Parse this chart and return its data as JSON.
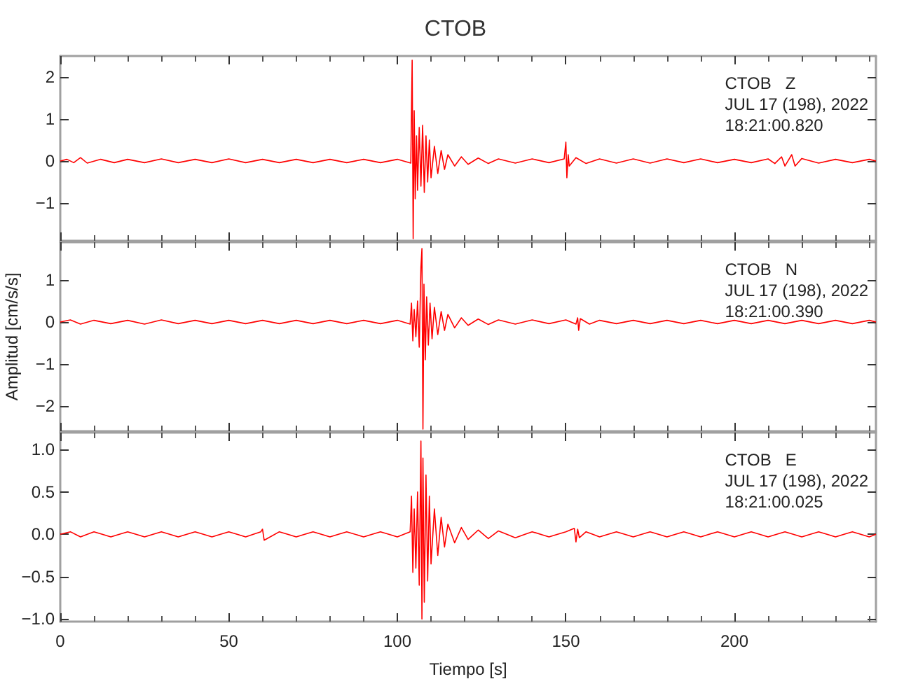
{
  "chart_data": [
    {
      "type": "line",
      "title": "CTOB",
      "color": "#ff0000",
      "xlim": [
        0,
        242
      ],
      "xticks": [
        0,
        50,
        100,
        150,
        200
      ],
      "ylim": [
        -1.9,
        2.5
      ],
      "yticks": [
        {
          "value": -1,
          "label": "−1"
        },
        0,
        1,
        2
      ],
      "grid": false,
      "tick_labels": "y",
      "annotations": [
        "CTOB   Z",
        "JUL 17 (198), 2022",
        "18:21:00.820"
      ],
      "x": [
        0,
        2,
        4,
        6,
        8,
        12,
        16,
        20,
        25,
        30,
        35,
        40,
        45,
        50,
        55,
        60,
        65,
        70,
        75,
        80,
        85,
        90,
        95,
        100,
        104,
        104.4,
        104.7,
        105,
        105.3,
        105.7,
        106,
        106.5,
        107,
        107.5,
        108,
        108.5,
        109,
        109.5,
        110,
        111,
        112,
        113,
        114,
        115,
        117,
        119,
        121,
        124,
        127,
        130,
        135,
        140,
        145,
        149.5,
        150,
        150.3,
        150.7,
        151,
        153,
        156,
        160,
        165,
        170,
        175,
        180,
        185,
        190,
        195,
        200,
        205,
        210,
        212,
        214,
        215,
        217,
        218,
        220,
        225,
        230,
        235,
        240,
        242
      ],
      "values": [
        0,
        0.04,
        -0.04,
        0.08,
        -0.05,
        0.04,
        -0.04,
        0.04,
        -0.04,
        0.05,
        -0.04,
        0.04,
        -0.04,
        0.05,
        -0.04,
        0.04,
        -0.04,
        0.04,
        -0.04,
        0.04,
        -0.04,
        0.04,
        -0.04,
        0.04,
        -0.05,
        2.4,
        -1.85,
        1.2,
        -0.9,
        0.6,
        -0.7,
        0.8,
        -0.6,
        0.85,
        -0.75,
        0.6,
        -0.5,
        0.5,
        -0.4,
        0.35,
        -0.3,
        0.25,
        -0.2,
        0.15,
        -0.12,
        0.1,
        -0.08,
        0.07,
        -0.06,
        0.05,
        -0.05,
        0.05,
        -0.04,
        0.05,
        0.45,
        -0.4,
        0.15,
        -0.12,
        0.08,
        -0.06,
        0.05,
        -0.05,
        0.05,
        -0.05,
        0.05,
        -0.04,
        0.05,
        -0.04,
        0.04,
        -0.04,
        0.05,
        -0.06,
        0.1,
        -0.12,
        0.15,
        -0.12,
        0.06,
        -0.05,
        0.04,
        -0.04,
        0.04,
        0
      ]
    },
    {
      "type": "line",
      "ylabel": "Amplitud [cm/s/s]",
      "color": "#ff0000",
      "xlim": [
        0,
        242
      ],
      "xticks": [
        0,
        50,
        100,
        150,
        200
      ],
      "ylim": [
        -2.6,
        1.9
      ],
      "yticks": [
        {
          "value": -2,
          "label": "−2"
        },
        {
          "value": -1,
          "label": "−1"
        },
        0,
        1
      ],
      "grid": false,
      "tick_labels": "y",
      "annotations": [
        "CTOB   N",
        "JUL 17 (198), 2022",
        "18:21:00.390"
      ],
      "x": [
        0,
        3,
        6,
        10,
        15,
        20,
        25,
        30,
        35,
        40,
        45,
        50,
        55,
        60,
        65,
        70,
        75,
        80,
        85,
        90,
        95,
        100,
        103.8,
        104.2,
        104.6,
        105,
        105.5,
        106,
        106.5,
        107,
        107.3,
        107.6,
        107.9,
        108.3,
        108.7,
        109.2,
        109.7,
        110.3,
        111,
        112,
        113,
        114,
        115,
        117,
        119,
        121,
        124,
        127,
        130,
        135,
        140,
        145,
        150,
        153,
        153.5,
        153.8,
        154.3,
        157,
        160,
        165,
        170,
        175,
        180,
        185,
        190,
        195,
        200,
        205,
        210,
        215,
        220,
        225,
        230,
        235,
        240,
        242
      ],
      "values": [
        0,
        0.05,
        -0.05,
        0.04,
        -0.04,
        0.04,
        -0.05,
        0.05,
        -0.04,
        0.04,
        -0.04,
        0.04,
        -0.04,
        0.04,
        -0.04,
        0.04,
        -0.04,
        0.04,
        -0.04,
        0.04,
        -0.04,
        0.04,
        -0.05,
        0.45,
        -0.45,
        0.3,
        -0.35,
        0.5,
        -0.6,
        1.3,
        1.75,
        -2.55,
        0.9,
        -0.9,
        0.6,
        -0.55,
        0.45,
        -0.4,
        0.35,
        -0.3,
        0.25,
        -0.2,
        0.18,
        -0.14,
        0.1,
        -0.08,
        0.07,
        -0.06,
        0.05,
        -0.05,
        0.05,
        -0.04,
        0.05,
        -0.05,
        0.1,
        -0.2,
        0.08,
        -0.05,
        0.04,
        -0.04,
        0.04,
        -0.04,
        0.04,
        -0.04,
        0.04,
        -0.04,
        0.04,
        -0.04,
        0.04,
        -0.04,
        0.04,
        -0.04,
        0.04,
        -0.04,
        0.04,
        0
      ]
    },
    {
      "type": "line",
      "xlabel": "Tiempo [s]",
      "color": "#ff0000",
      "xlim": [
        0,
        242
      ],
      "xticks": [
        0,
        50,
        100,
        150,
        200
      ],
      "ylim": [
        -1.03,
        1.2
      ],
      "yticks": [
        {
          "value": -1,
          "label": "−1.0"
        },
        {
          "value": -0.5,
          "label": "−0.5"
        },
        {
          "value": 0,
          "label": "0.0"
        },
        {
          "value": 0.5,
          "label": "0.5"
        },
        {
          "value": 1,
          "label": "1.0"
        }
      ],
      "grid": false,
      "annotations": [
        "CTOB   E",
        "JUL 17 (198), 2022",
        "18:21:00.025"
      ],
      "x": [
        0,
        3,
        6,
        10,
        15,
        20,
        25,
        30,
        35,
        40,
        45,
        50,
        55,
        59.5,
        60,
        60.5,
        65,
        70,
        75,
        80,
        85,
        90,
        95,
        100,
        103.8,
        104.2,
        104.6,
        105,
        105.5,
        106,
        106.5,
        107,
        107.3,
        107.6,
        108,
        108.5,
        109,
        109.5,
        110,
        111,
        112,
        113,
        114,
        115,
        117,
        119,
        121,
        124,
        127,
        130,
        135,
        140,
        145,
        150,
        152.5,
        153,
        153.5,
        154,
        156,
        160,
        165,
        170,
        175,
        180,
        185,
        190,
        195,
        200,
        205,
        210,
        215,
        220,
        225,
        230,
        235,
        240,
        242
      ],
      "values": [
        0,
        0.03,
        -0.03,
        0.03,
        -0.03,
        0.03,
        -0.03,
        0.03,
        -0.03,
        0.03,
        -0.03,
        0.03,
        -0.03,
        0.03,
        0.06,
        -0.07,
        0.03,
        -0.03,
        0.03,
        -0.03,
        0.03,
        -0.03,
        0.03,
        -0.03,
        0.03,
        0.45,
        -0.45,
        0.3,
        -0.4,
        0.5,
        -0.6,
        1.1,
        -1.0,
        0.9,
        -0.8,
        0.7,
        -0.55,
        0.45,
        -0.35,
        0.3,
        -0.25,
        0.2,
        -0.15,
        0.12,
        -0.1,
        0.08,
        -0.06,
        0.05,
        -0.05,
        0.04,
        -0.04,
        0.03,
        -0.03,
        0.03,
        0.07,
        -0.09,
        0.06,
        -0.04,
        0.03,
        -0.03,
        0.03,
        -0.03,
        0.03,
        -0.03,
        0.03,
        -0.03,
        0.03,
        -0.03,
        0.03,
        -0.03,
        0.03,
        -0.03,
        0.03,
        -0.03,
        0.03,
        -0.03,
        0
      ]
    }
  ]
}
